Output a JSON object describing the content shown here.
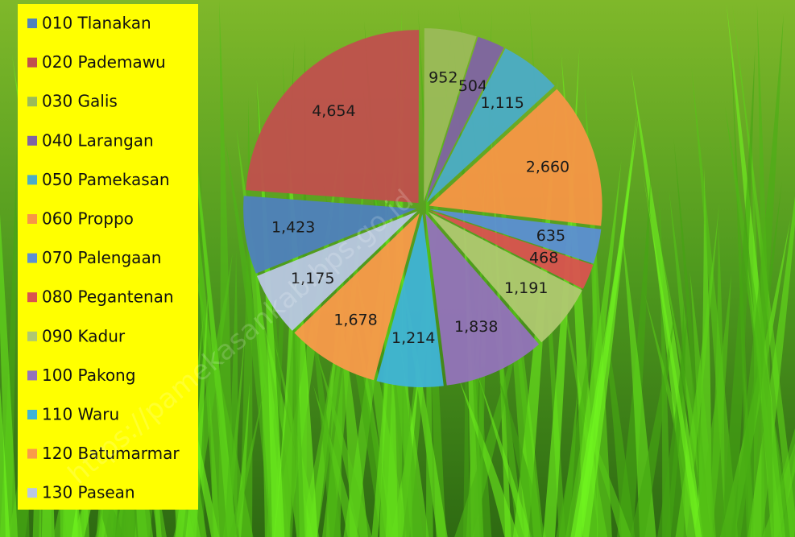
{
  "chart_data": {
    "type": "pie",
    "categories": [
      "010 Tlanakan",
      "020 Pademawu",
      "030 Galis",
      "040 Larangan",
      "050 Pamekasan",
      "060 Proppo",
      "070 Palengaan",
      "080 Pegantenan",
      "090 Kadur",
      "100 Pakong",
      "110 Waru",
      "120 Batumarmar",
      "130 Pasean"
    ],
    "values": [
      1423,
      4654,
      952,
      504,
      1115,
      2660,
      635,
      468,
      1191,
      1838,
      1214,
      1678,
      1175
    ],
    "value_labels": [
      "1,423",
      "4,654",
      "952",
      "504",
      "1,115",
      "2,660",
      "635",
      "468",
      "1,191",
      "1,838",
      "1,214",
      "1,678",
      "1,175"
    ],
    "colors": [
      "#4F81BD",
      "#C0504D",
      "#9BBB59",
      "#8064A2",
      "#4BACC6",
      "#F79646",
      "#5C8FD3",
      "#D9534F",
      "#AFC870",
      "#9473BA",
      "#3FB3D6",
      "#F99A4A",
      "#B9C7E3"
    ],
    "legend": "left",
    "watermark": "https://pamekasankab.bps.go.id"
  }
}
